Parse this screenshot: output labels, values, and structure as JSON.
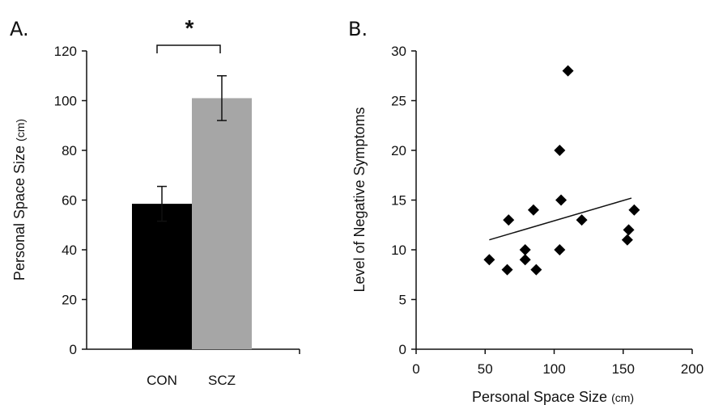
{
  "chart_data": [
    {
      "panel_label": "A.",
      "type": "bar",
      "categories": [
        "CON",
        "SCZ"
      ],
      "values": [
        58.5,
        101
      ],
      "errors": [
        7,
        9
      ],
      "colors": [
        "#000000",
        "#a6a6a6"
      ],
      "ylabel": "Personal Space Size",
      "ylabel_unit": "(cm)",
      "ylim": [
        0,
        120
      ],
      "yticks": [
        "0",
        "20",
        "40",
        "60",
        "80",
        "100",
        "120"
      ],
      "significance": "*"
    },
    {
      "panel_label": "B.",
      "type": "scatter",
      "xlabel": "Personal Space Size",
      "xlabel_unit": "(cm)",
      "ylabel": "Level of Negative Symptoms",
      "xlim": [
        0,
        200
      ],
      "ylim": [
        0,
        30
      ],
      "xticks": [
        "0",
        "50",
        "100",
        "150",
        "200"
      ],
      "yticks": [
        "0",
        "5",
        "10",
        "15",
        "20",
        "25",
        "30"
      ],
      "points": [
        {
          "x": 53,
          "y": 9
        },
        {
          "x": 66,
          "y": 8
        },
        {
          "x": 67,
          "y": 13
        },
        {
          "x": 79,
          "y": 10
        },
        {
          "x": 79,
          "y": 9
        },
        {
          "x": 85,
          "y": 14
        },
        {
          "x": 87,
          "y": 8
        },
        {
          "x": 104,
          "y": 20
        },
        {
          "x": 105,
          "y": 15
        },
        {
          "x": 104,
          "y": 10
        },
        {
          "x": 110,
          "y": 28
        },
        {
          "x": 120,
          "y": 13
        },
        {
          "x": 153,
          "y": 11
        },
        {
          "x": 154,
          "y": 12
        },
        {
          "x": 158,
          "y": 14
        }
      ],
      "trendline": {
        "x": [
          53,
          156
        ],
        "y": [
          11,
          15.2
        ]
      },
      "marker_color": "#000000"
    }
  ]
}
